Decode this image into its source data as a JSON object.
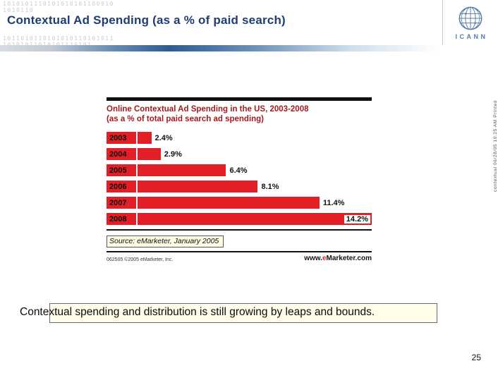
{
  "slide": {
    "title": "Contextual Ad Spending (as a % of paid search)",
    "caption": "Contextual spending and distribution is still growing by leaps and bounds.",
    "side_note": "contextual   06/28/05   10:25 AM   Printed",
    "page_number": "25",
    "binary_rows": [
      "1010101110101010101100010",
      "1010110",
      "1011010110101010110101011",
      "10101011010101110101"
    ]
  },
  "logo": {
    "text": "ICANN"
  },
  "chart": {
    "title_line1": "Online Contextual Ad Spending in the US, 2003-2008",
    "title_line2": "(as a % of total paid search ad spending)",
    "source": "Source: eMarketer, January 2005",
    "footer_left": "062505 ©2005 eMarketer, Inc.",
    "site_prefix": "www.",
    "site_e": "e",
    "site_rest": "Marketer.com"
  },
  "chart_data": {
    "type": "bar",
    "orientation": "horizontal",
    "title": "Online Contextual Ad Spending in the US, 2003-2008 (as a % of total paid search ad spending)",
    "categories": [
      "2003",
      "2004",
      "2005",
      "2006",
      "2007",
      "2008"
    ],
    "values": [
      2.4,
      2.9,
      6.4,
      8.1,
      11.4,
      14.2
    ],
    "value_labels": [
      "2.4%",
      "2.9%",
      "6.4%",
      "8.1%",
      "11.4%",
      "14.2%"
    ],
    "unit": "%",
    "xlim": [
      0,
      14.2
    ],
    "grid": false,
    "legend": false,
    "bar_color": "#e31e26",
    "source": "Source: eMarketer, January 2005"
  },
  "colors": {
    "bar_red": "#e31e26",
    "chart_title_red": "#9e1a1d",
    "slide_title_navy": "#1f3c74",
    "logo_blue": "#5b7da3"
  }
}
